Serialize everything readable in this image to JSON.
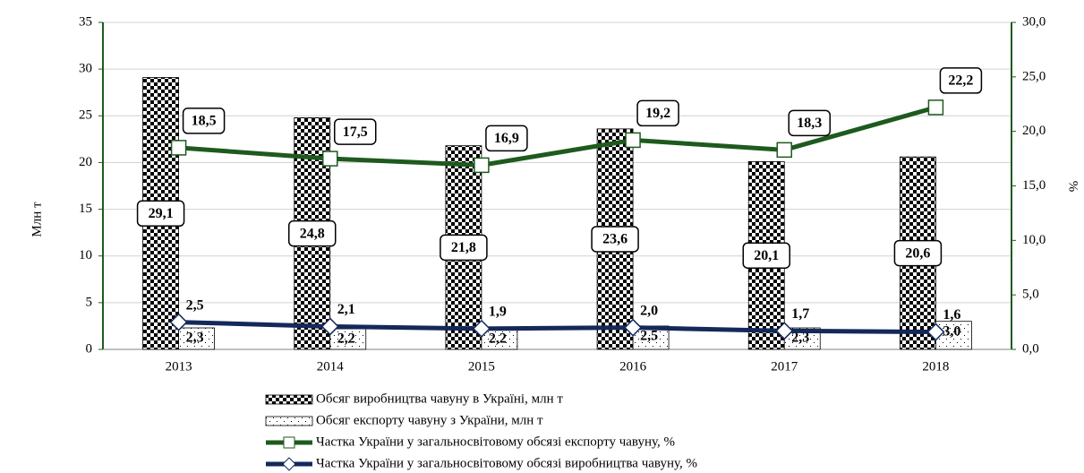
{
  "chart_data": {
    "type": "bar_line",
    "categories": [
      "2013",
      "2014",
      "2015",
      "2016",
      "2017",
      "2018"
    ],
    "ylabel": "Млн т",
    "y2label": "%",
    "ylim": [
      0,
      35
    ],
    "yticks": [
      0,
      5,
      10,
      15,
      20,
      25,
      30,
      35
    ],
    "y2lim": [
      0,
      30
    ],
    "y2ticks": [
      {
        "value": 0,
        "label": "0,0"
      },
      {
        "value": 5,
        "label": "5,0"
      },
      {
        "value": 10,
        "label": "10,0"
      },
      {
        "value": 15,
        "label": "15,0"
      },
      {
        "value": 20,
        "label": "20,0"
      },
      {
        "value": 25,
        "label": "25,0"
      },
      {
        "value": 30,
        "label": "30,0"
      }
    ],
    "grid": true,
    "legend": "bottom",
    "series": [
      {
        "name": "Обсяг виробництва чавуну в Україні, млн т",
        "type": "bar",
        "pattern": "checker",
        "color": "#000000",
        "values": [
          29.1,
          24.8,
          21.8,
          23.6,
          20.1,
          20.6
        ],
        "value_labels": [
          "29,1",
          "24,8",
          "21,8",
          "23,6",
          "20,1",
          "20,6"
        ]
      },
      {
        "name": "Обсяг експорту чавуну з України, млн т",
        "type": "bar",
        "pattern": "dots",
        "color": "#000000",
        "values": [
          2.3,
          2.2,
          2.2,
          2.5,
          2.3,
          3.0
        ],
        "value_labels": [
          "2,3",
          "2,2",
          "2,2",
          "2,5",
          "2,3",
          "3,0"
        ]
      },
      {
        "name": "Частка України у загальносвітовому обсязі експорту чавуну, %",
        "type": "line",
        "axis": "y2",
        "marker": "square",
        "color": "#1e5a1e",
        "values": [
          18.5,
          17.5,
          16.9,
          19.2,
          18.3,
          22.2
        ],
        "value_labels": [
          "18,5",
          "17,5",
          "16,9",
          "19,2",
          "18,3",
          "22,2"
        ]
      },
      {
        "name": "Частка України у загальносвітовому обсязі виробництва чавуну, %",
        "type": "line",
        "axis": "y2",
        "marker": "diamond",
        "color": "#13295a",
        "values": [
          2.5,
          2.1,
          1.9,
          2.0,
          1.7,
          1.6
        ],
        "value_labels": [
          "2,5",
          "2,1",
          "1,9",
          "2,0",
          "1,7",
          "1,6"
        ]
      }
    ]
  }
}
